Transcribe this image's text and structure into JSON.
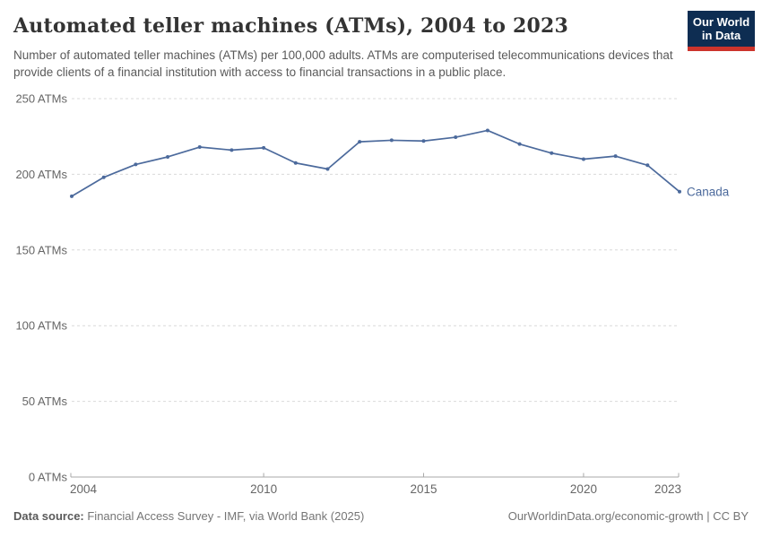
{
  "header": {
    "title": "Automated teller machines (ATMs), 2004 to 2023",
    "subtitle": "Number of automated teller machines (ATMs) per 100,000 adults. ATMs are computerised telecommunications devices that provide clients of a financial institution with access to financial transactions in a public place."
  },
  "logo": {
    "line1": "Our World",
    "line2": "in Data",
    "bg_color": "#0e2d52",
    "bar_color": "#cc342c"
  },
  "footer": {
    "datasource_label": "Data source:",
    "datasource_text": " Financial Access Survey - IMF, via World Bank (2025)",
    "right_text": "OurWorldinData.org/economic-growth | CC BY"
  },
  "chart_data": {
    "type": "line",
    "title": "Automated teller machines (ATMs), 2004 to 2023",
    "x": [
      2004,
      2005,
      2006,
      2007,
      2008,
      2009,
      2010,
      2011,
      2012,
      2013,
      2014,
      2015,
      2016,
      2017,
      2018,
      2019,
      2020,
      2021,
      2022,
      2023
    ],
    "series": [
      {
        "name": "Canada",
        "color": "#4c6a9c",
        "values": [
          185.5,
          198,
          206.5,
          211.5,
          218,
          216,
          217.5,
          207.5,
          203.5,
          221.5,
          222.5,
          222,
          224.5,
          229,
          220,
          214,
          210,
          212,
          206,
          188.5
        ]
      }
    ],
    "xlim": [
      2004,
      2023
    ],
    "ylim": [
      0,
      250
    ],
    "x_ticks": [
      {
        "value": 2004,
        "label": "2004"
      },
      {
        "value": 2010,
        "label": "2010"
      },
      {
        "value": 2015,
        "label": "2015"
      },
      {
        "value": 2020,
        "label": "2020"
      },
      {
        "value": 2023,
        "label": "2023"
      }
    ],
    "y_ticks": [
      {
        "value": 0,
        "label": "0 ATMs"
      },
      {
        "value": 50,
        "label": "50 ATMs"
      },
      {
        "value": 100,
        "label": "100 ATMs"
      },
      {
        "value": 150,
        "label": "150 ATMs"
      },
      {
        "value": 200,
        "label": "200 ATMs"
      },
      {
        "value": 250,
        "label": "250 ATMs"
      }
    ],
    "grid": "horizontal-dashed",
    "legend_position": "end-of-line-label",
    "colors": {
      "gridline": "#d9d9d9",
      "axis": "#a8a8a8",
      "tick_label": "#666666"
    }
  }
}
